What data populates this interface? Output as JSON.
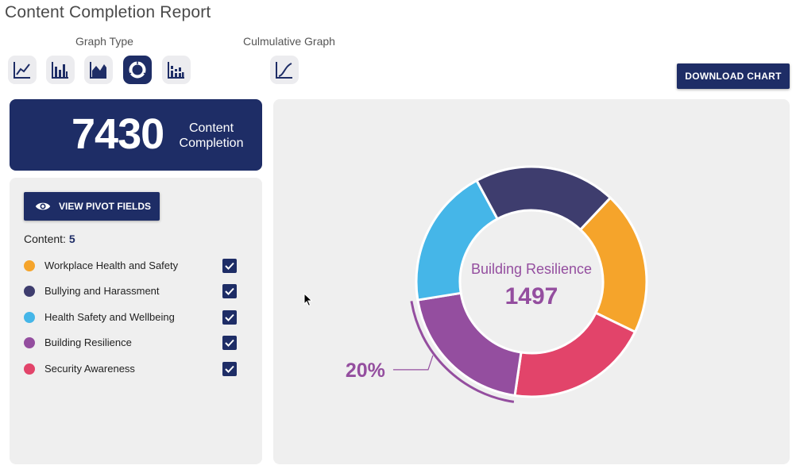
{
  "page": {
    "title": "Content Completion Report"
  },
  "graph_type": {
    "label": "Graph Type",
    "buttons": [
      {
        "name": "line-chart",
        "active": false
      },
      {
        "name": "bar-chart",
        "active": false
      },
      {
        "name": "area-chart",
        "active": false
      },
      {
        "name": "donut-chart",
        "active": true
      },
      {
        "name": "stacked-bar-chart",
        "active": false
      }
    ]
  },
  "cumulative": {
    "label": "Culmulative Graph",
    "button": "cumulative-line-chart"
  },
  "download": {
    "label": "DOWNLOAD CHART"
  },
  "summary": {
    "total": "7430",
    "label_line1": "Content",
    "label_line2": "Completion"
  },
  "pivot": {
    "label": "VIEW PIVOT FIELDS"
  },
  "content": {
    "label": "Content:",
    "count": "5"
  },
  "legend": [
    {
      "label": "Workplace Health and Safety",
      "color": "#f5a42b",
      "checked": true
    },
    {
      "label": "Bullying and Harassment",
      "color": "#3e3d6e",
      "checked": true
    },
    {
      "label": "Health Safety and Wellbeing",
      "color": "#45b6e8",
      "checked": true
    },
    {
      "label": "Building Resilience",
      "color": "#944e9f",
      "checked": true
    },
    {
      "label": "Security Awareness",
      "color": "#e2446a",
      "checked": true
    }
  ],
  "colors": {
    "primary": "#1e2d66",
    "panel": "#efefef"
  },
  "chart_data": {
    "type": "pie",
    "variant": "donut",
    "total": 7430,
    "highlighted": {
      "label": "Building Resilience",
      "value": 1497,
      "percent": "20%"
    },
    "slices": [
      {
        "label": "Workplace Health and Safety",
        "value": 1500,
        "color": "#f5a42b"
      },
      {
        "label": "Security Awareness",
        "value": 1495,
        "color": "#e2446a"
      },
      {
        "label": "Building Resilience",
        "value": 1497,
        "color": "#944e9f"
      },
      {
        "label": "Health Safety and Wellbeing",
        "value": 1460,
        "color": "#45b6e8"
      },
      {
        "label": "Bullying and Harassment",
        "value": 1478,
        "color": "#3e3d6e"
      }
    ]
  }
}
